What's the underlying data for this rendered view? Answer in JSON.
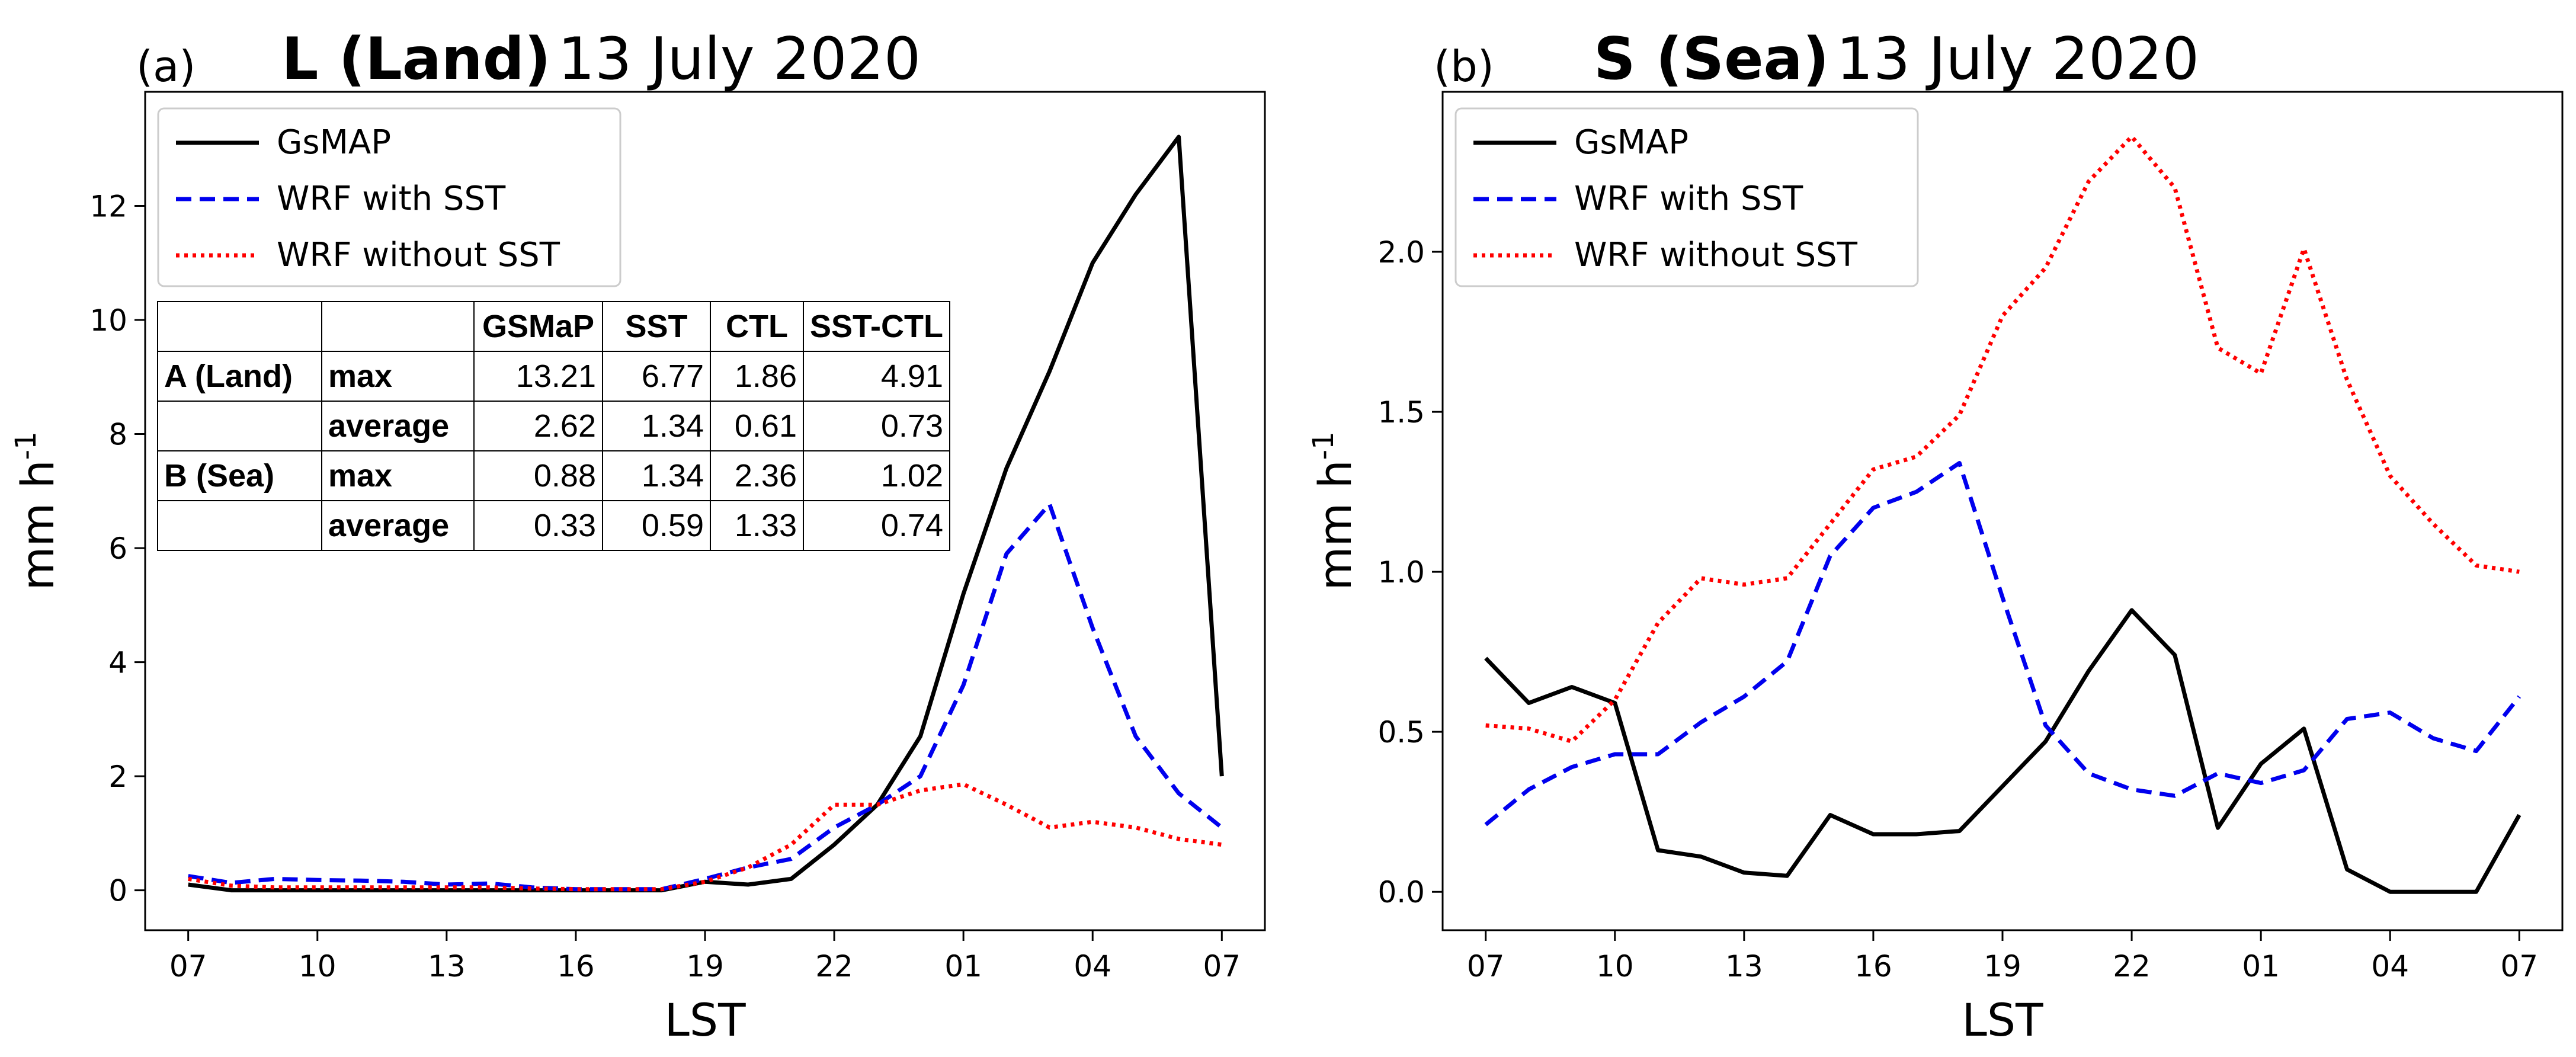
{
  "chart_data": [
    {
      "type": "line",
      "panel_label": "(a)",
      "title_bold": "L (Land)",
      "title_rest": "13 July 2020",
      "xlabel": "LST",
      "ylabel": "mm h",
      "ylabel_sup": "-1",
      "x": [
        0,
        1,
        2,
        3,
        4,
        5,
        6,
        7,
        8,
        9,
        10,
        11,
        12,
        13,
        14,
        15,
        16,
        17,
        18,
        19,
        20,
        21,
        22,
        23,
        24
      ],
      "xticks": [
        0,
        3,
        6,
        9,
        12,
        15,
        18,
        21,
        24
      ],
      "xtick_labels": [
        "07",
        "10",
        "13",
        "16",
        "19",
        "22",
        "01",
        "04",
        "07"
      ],
      "xlim": [
        -1,
        25
      ],
      "ylim": [
        -0.7,
        14
      ],
      "yticks": [
        0,
        2,
        4,
        6,
        8,
        10,
        12
      ],
      "ytick_labels": [
        "0",
        "2",
        "4",
        "6",
        "8",
        "10",
        "12"
      ],
      "series": [
        {
          "name": "GsMAP",
          "color": "#000000",
          "dash": "",
          "values": [
            0.1,
            0.0,
            0.0,
            0.0,
            0.0,
            0.0,
            0.0,
            0.0,
            0.0,
            0.0,
            0.0,
            0.0,
            0.15,
            0.1,
            0.2,
            0.8,
            1.5,
            2.7,
            5.2,
            7.4,
            9.1,
            11.0,
            12.2,
            13.21,
            2.0
          ]
        },
        {
          "name": "WRF with SST",
          "color": "#0000ee",
          "dash": "dashed",
          "values": [
            0.25,
            0.13,
            0.2,
            0.18,
            0.17,
            0.15,
            0.1,
            0.12,
            0.05,
            0.02,
            0.02,
            0.02,
            0.2,
            0.4,
            0.55,
            1.1,
            1.5,
            2.0,
            3.6,
            5.9,
            6.77,
            4.6,
            2.7,
            1.7,
            1.1
          ]
        },
        {
          "name": "WRF without SST",
          "color": "#ff0000",
          "dash": "dotted",
          "values": [
            0.2,
            0.08,
            0.05,
            0.05,
            0.05,
            0.05,
            0.05,
            0.05,
            0.03,
            0.02,
            0.02,
            0.02,
            0.15,
            0.4,
            0.8,
            1.5,
            1.5,
            1.75,
            1.86,
            1.5,
            1.1,
            1.2,
            1.1,
            0.9,
            0.8
          ]
        }
      ],
      "legend": [
        "GsMAP",
        "WRF with SST",
        "WRF without SST"
      ],
      "legend_position": "top-left"
    },
    {
      "type": "line",
      "panel_label": "(b)",
      "title_bold": "S (Sea)",
      "title_rest": "13 July 2020",
      "xlabel": "LST",
      "ylabel": "mm h",
      "ylabel_sup": "-1",
      "x": [
        0,
        1,
        2,
        3,
        4,
        5,
        6,
        7,
        8,
        9,
        10,
        11,
        12,
        13,
        14,
        15,
        16,
        17,
        18,
        19,
        20,
        21,
        22,
        23,
        24
      ],
      "xticks": [
        0,
        3,
        6,
        9,
        12,
        15,
        18,
        21,
        24
      ],
      "xtick_labels": [
        "07",
        "10",
        "13",
        "16",
        "19",
        "22",
        "01",
        "04",
        "07"
      ],
      "xlim": [
        -1,
        25
      ],
      "ylim": [
        -0.12,
        2.5
      ],
      "yticks": [
        0.0,
        0.5,
        1.0,
        1.5,
        2.0
      ],
      "ytick_labels": [
        "0.0",
        "0.5",
        "1.0",
        "1.5",
        "2.0"
      ],
      "series": [
        {
          "name": "GsMAP",
          "color": "#000000",
          "dash": "",
          "values": [
            0.73,
            0.59,
            0.64,
            0.59,
            0.13,
            0.11,
            0.06,
            0.05,
            0.24,
            0.18,
            0.18,
            0.19,
            0.33,
            0.47,
            0.69,
            0.88,
            0.74,
            0.2,
            0.4,
            0.51,
            0.07,
            0.0,
            0.0,
            0.0,
            0.24
          ]
        },
        {
          "name": "WRF with SST",
          "color": "#0000ee",
          "dash": "dashed",
          "values": [
            0.21,
            0.32,
            0.39,
            0.43,
            0.43,
            0.53,
            0.61,
            0.72,
            1.05,
            1.2,
            1.25,
            1.34,
            0.92,
            0.52,
            0.37,
            0.32,
            0.3,
            0.37,
            0.34,
            0.38,
            0.54,
            0.56,
            0.48,
            0.44,
            0.61
          ]
        },
        {
          "name": "WRF without SST",
          "color": "#ff0000",
          "dash": "dotted",
          "values": [
            0.52,
            0.51,
            0.47,
            0.6,
            0.84,
            0.98,
            0.96,
            0.98,
            1.15,
            1.32,
            1.36,
            1.49,
            1.8,
            1.95,
            2.22,
            2.36,
            2.2,
            1.7,
            1.62,
            2.01,
            1.6,
            1.3,
            1.15,
            1.02,
            1.0
          ]
        }
      ],
      "legend": [
        "GsMAP",
        "WRF with SST",
        "WRF without SST"
      ],
      "legend_position": "top-left"
    }
  ],
  "stats_table": {
    "headers": [
      "",
      "",
      "GSMaP",
      "SST",
      "CTL",
      "SST-CTL"
    ],
    "rows": [
      [
        "A (Land)",
        "max",
        "13.21",
        "6.77",
        "1.86",
        "4.91"
      ],
      [
        "",
        "average",
        "2.62",
        "1.34",
        "0.61",
        "0.73"
      ],
      [
        "B (Sea)",
        "max",
        "0.88",
        "1.34",
        "2.36",
        "1.02"
      ],
      [
        "",
        "average",
        "0.33",
        "0.59",
        "1.33",
        "0.74"
      ]
    ]
  }
}
